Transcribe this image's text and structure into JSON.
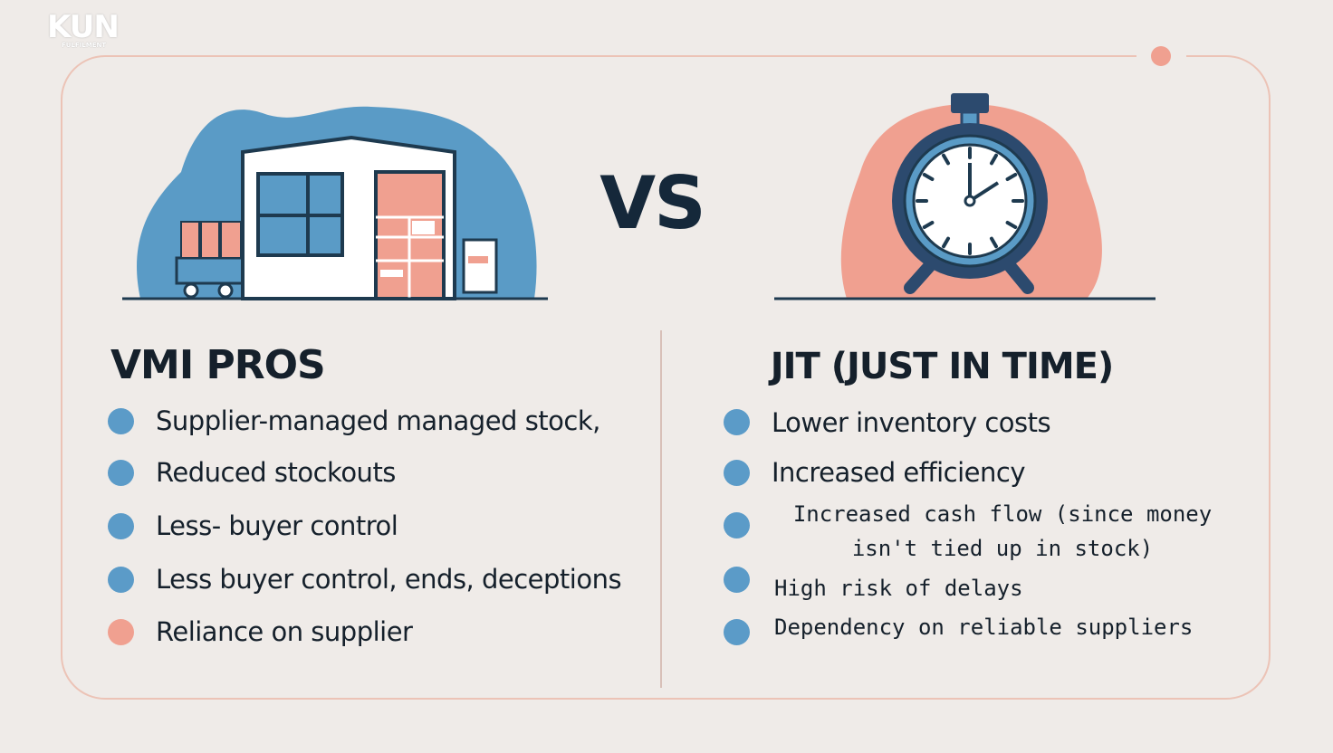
{
  "logo": {
    "name": "KUN",
    "tagline": "FULFILMENT"
  },
  "versus": "VS",
  "left": {
    "title": "VMI PROS",
    "items": [
      "Supplier-managed managed stock,",
      "Reduced stockouts",
      "Less- buyer control",
      "Less buyer control, ends, deceptions",
      "Reliance on supplier"
    ]
  },
  "right": {
    "title": "JIT (JUST IN TIME)",
    "items": [
      "Lower inventory costs",
      "Increased efficiency",
      "Increased cash flow (since money isn't tied up in stock)",
      "High risk of delays",
      "Dependency on reliable suppliers"
    ]
  }
}
